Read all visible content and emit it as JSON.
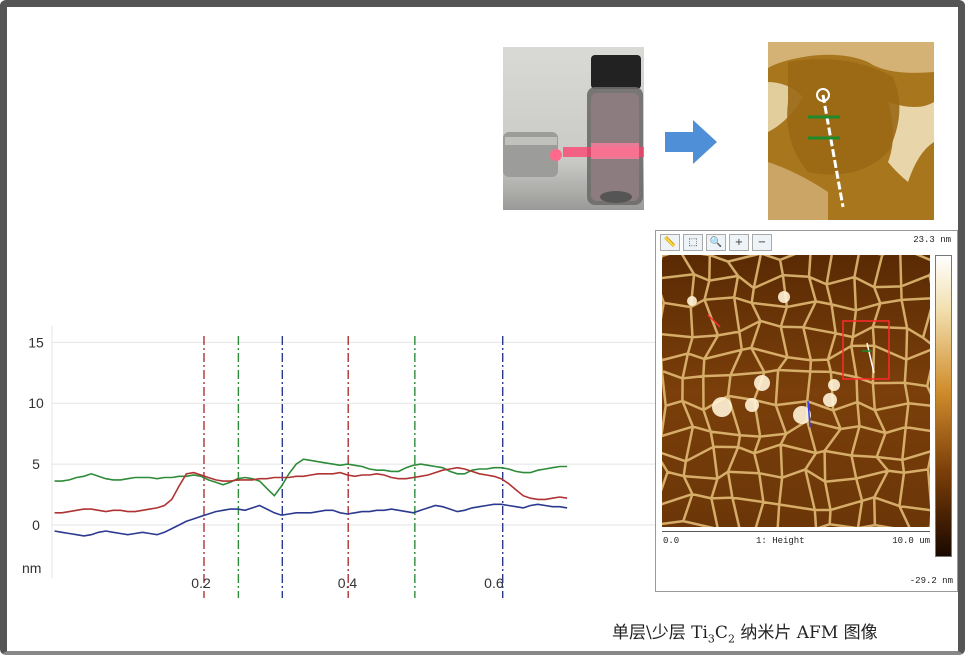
{
  "chart_data": {
    "type": "line",
    "x": [
      0.0,
      0.01,
      0.02,
      0.03,
      0.04,
      0.05,
      0.06,
      0.07,
      0.08,
      0.09,
      0.1,
      0.11,
      0.12,
      0.13,
      0.14,
      0.15,
      0.16,
      0.17,
      0.18,
      0.19,
      0.2,
      0.21,
      0.22,
      0.23,
      0.24,
      0.25,
      0.26,
      0.27,
      0.28,
      0.29,
      0.3,
      0.31,
      0.32,
      0.33,
      0.34,
      0.35,
      0.36,
      0.37,
      0.38,
      0.39,
      0.4,
      0.41,
      0.42,
      0.43,
      0.44,
      0.45,
      0.46,
      0.47,
      0.48,
      0.49,
      0.5,
      0.51,
      0.52,
      0.53,
      0.54,
      0.55,
      0.56,
      0.57,
      0.58,
      0.59,
      0.6,
      0.61,
      0.62,
      0.63,
      0.64,
      0.65,
      0.66,
      0.67,
      0.68,
      0.69,
      0.7
    ],
    "series": [
      {
        "color": "#2e8b3a",
        "values": [
          3.6,
          3.6,
          3.7,
          3.9,
          4.0,
          4.2,
          4.0,
          3.8,
          3.7,
          3.7,
          3.8,
          3.9,
          3.9,
          3.9,
          3.8,
          3.9,
          3.9,
          4.0,
          4.0,
          4.1,
          4.0,
          3.7,
          3.5,
          3.3,
          3.5,
          3.8,
          3.9,
          3.8,
          3.6,
          3.0,
          2.4,
          3.2,
          4.2,
          5.0,
          5.4,
          5.3,
          5.2,
          5.1,
          5.0,
          4.9,
          5.0,
          4.9,
          4.8,
          4.6,
          4.5,
          4.5,
          4.4,
          4.4,
          4.7,
          4.9,
          5.0,
          4.9,
          4.8,
          4.7,
          4.4,
          4.2,
          4.2,
          4.5,
          4.6,
          4.6,
          4.7,
          4.7,
          4.6,
          4.4,
          4.3,
          4.3,
          4.5,
          4.6,
          4.7,
          4.8,
          4.8
        ]
      },
      {
        "color": "#b03333",
        "values": [
          1.0,
          1.0,
          1.1,
          1.2,
          1.3,
          1.3,
          1.2,
          1.1,
          1.2,
          1.2,
          1.1,
          1.1,
          1.2,
          1.3,
          1.4,
          1.6,
          2.1,
          3.2,
          4.2,
          4.3,
          4.1,
          3.9,
          3.7,
          3.6,
          3.6,
          3.7,
          3.7,
          3.7,
          3.8,
          3.8,
          3.9,
          3.9,
          3.9,
          4.0,
          4.0,
          4.1,
          4.2,
          4.2,
          4.2,
          4.3,
          4.1,
          4.0,
          4.1,
          4.1,
          4.2,
          4.1,
          3.9,
          3.8,
          3.8,
          3.9,
          4.0,
          4.1,
          4.3,
          4.5,
          4.6,
          4.7,
          4.6,
          4.4,
          4.2,
          4.1,
          4.0,
          3.8,
          3.4,
          2.9,
          2.4,
          2.2,
          2.1,
          2.1,
          2.2,
          2.3,
          2.2
        ]
      },
      {
        "color": "#2b3a8f",
        "values": [
          -0.5,
          -0.6,
          -0.7,
          -0.8,
          -0.9,
          -0.8,
          -0.6,
          -0.5,
          -0.6,
          -0.7,
          -0.8,
          -0.7,
          -0.6,
          -0.7,
          -0.8,
          -0.6,
          -0.3,
          0.0,
          0.3,
          0.5,
          0.7,
          0.9,
          1.1,
          1.2,
          1.3,
          1.3,
          1.2,
          1.4,
          1.6,
          1.3,
          1.0,
          0.8,
          0.9,
          1.0,
          1.0,
          1.0,
          1.1,
          1.2,
          1.2,
          1.0,
          0.9,
          1.0,
          1.1,
          1.1,
          1.2,
          1.2,
          1.3,
          1.2,
          1.1,
          1.0,
          1.2,
          1.4,
          1.6,
          1.5,
          1.3,
          1.1,
          1.2,
          1.4,
          1.5,
          1.6,
          1.7,
          1.7,
          1.6,
          1.5,
          1.4,
          1.6,
          1.7,
          1.6,
          1.5,
          1.5,
          1.4
        ]
      }
    ],
    "vlines": [
      {
        "x": 0.204,
        "color": "#b03333"
      },
      {
        "x": 0.251,
        "color": "#2e8b3a"
      },
      {
        "x": 0.311,
        "color": "#2b3a8f"
      },
      {
        "x": 0.401,
        "color": "#b03333"
      },
      {
        "x": 0.492,
        "color": "#2e8b3a"
      },
      {
        "x": 0.612,
        "color": "#2b3a8f"
      }
    ],
    "xlim": [
      -0.05,
      0.82
    ],
    "ylim": [
      -6,
      17
    ],
    "yticks": [
      0,
      5,
      10,
      15
    ],
    "ytick_labels": [
      "0",
      "5",
      "10",
      "15"
    ],
    "xticks": [
      0.2,
      0.4,
      0.6
    ],
    "xtick_labels": [
      "0.2",
      "0.4",
      "0.6"
    ],
    "ylabel": "nm",
    "grid": true
  },
  "afm_panel": {
    "scale_max": "23.3 nm",
    "scale_min": "-29.2 nm",
    "axis_left": "0.0",
    "axis_mid": "1: Height",
    "axis_right": "10.0 um"
  },
  "caption": {
    "prefix": "单层\\少层 Ti",
    "sub1": "3",
    "mid": "C",
    "sub2": "2",
    "suffix": " 纳米片 AFM 图像"
  },
  "icons": {
    "arrow": "right-arrow-icon",
    "tools": [
      "ruler-icon",
      "select-icon",
      "zoom-icon",
      "zoom-in-icon",
      "zoom-out-icon"
    ]
  }
}
